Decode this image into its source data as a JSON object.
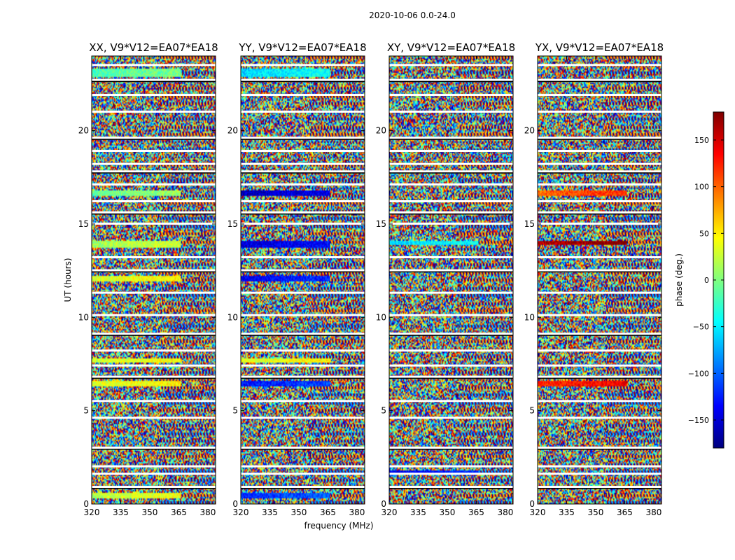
{
  "chart_data": {
    "type": "heatmap",
    "suptitle": "2020-10-06 0.0-24.0",
    "ylabel": "UT (hours)",
    "xlabel": "frequency (MHz)",
    "xlim": [
      320,
      384
    ],
    "ylim": [
      0,
      24
    ],
    "xticks": [
      320,
      335,
      350,
      365,
      380
    ],
    "yticks": [
      0,
      5,
      10,
      15,
      20
    ],
    "panels": [
      {
        "title": "XX, V9*V12=EA07*EA18",
        "coherent_bands": [
          [
            0.3,
            0.6,
            20
          ],
          [
            6.3,
            6.6,
            30
          ],
          [
            7.6,
            7.8,
            25
          ],
          [
            11.9,
            12.2,
            30
          ],
          [
            13.7,
            14.1,
            10
          ],
          [
            16.5,
            16.8,
            -10
          ],
          [
            22.9,
            23.3,
            -20
          ]
        ]
      },
      {
        "title": "YY, V9*V12=EA07*EA18",
        "coherent_bands": [
          [
            0.3,
            0.6,
            -120
          ],
          [
            6.3,
            6.6,
            -130
          ],
          [
            7.6,
            7.8,
            30
          ],
          [
            11.9,
            12.2,
            -140
          ],
          [
            13.7,
            14.1,
            -150
          ],
          [
            16.5,
            16.8,
            -160
          ],
          [
            22.9,
            23.3,
            -60
          ]
        ]
      },
      {
        "title": "XY, V9*V12=EA07*EA18",
        "coherent_bands": [
          [
            1.6,
            1.8,
            -140
          ],
          [
            13.9,
            14.1,
            -60
          ]
        ]
      },
      {
        "title": "YX, V9*V12=EA07*EA18",
        "coherent_bands": [
          [
            6.3,
            6.6,
            120
          ],
          [
            13.9,
            14.1,
            160
          ],
          [
            16.5,
            16.8,
            100
          ]
        ]
      }
    ],
    "gap_hours": [
      0.9,
      1.6,
      2.0,
      3.0,
      4.6,
      5.5,
      6.8,
      7.4,
      8.2,
      9.1,
      10.1,
      11.3,
      12.5,
      13.2,
      15.0,
      15.6,
      16.2,
      17.1,
      17.8,
      18.2,
      18.9,
      19.6,
      21.0,
      21.9,
      22.7,
      23.5
    ],
    "colorbar": {
      "label": "phase (deg.)",
      "range": [
        -180,
        180
      ],
      "ticks": [
        150,
        100,
        50,
        0,
        -50,
        -100,
        -150
      ],
      "tick_labels": [
        "150",
        "100",
        "50",
        "0",
        "−50",
        "−100",
        "−150"
      ],
      "colors": [
        "#00007f",
        "#0000ff",
        "#007fff",
        "#00ffff",
        "#7fff7f",
        "#ffff00",
        "#ff7f00",
        "#ff0000",
        "#7f0000"
      ]
    }
  }
}
